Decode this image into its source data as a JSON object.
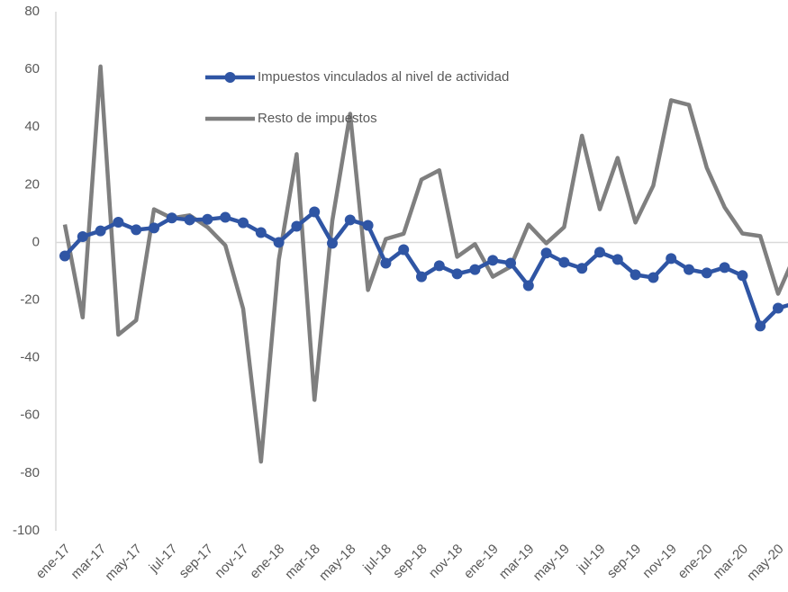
{
  "chart_data": {
    "type": "line",
    "categories": [
      "ene-17",
      null,
      "mar-17",
      null,
      "may-17",
      null,
      "jul-17",
      null,
      "sep-17",
      null,
      "nov-17",
      null,
      "ene-18",
      null,
      "mar-18",
      null,
      "may-18",
      null,
      "jul-18",
      null,
      "sep-18",
      null,
      "nov-18",
      null,
      "ene-19",
      null,
      "mar-19",
      null,
      "may-19",
      null,
      "jul-19",
      null,
      "sep-19",
      null,
      "nov-19",
      null,
      "ene-20",
      null,
      "mar-20",
      null,
      "may-20",
      null
    ],
    "series": [
      {
        "name": "Impuestos vinculados al nivel de actividad",
        "color": "#2f55a4",
        "marker": true,
        "values": [
          -4.7,
          2,
          4,
          7,
          4.4,
          5,
          8.5,
          7.8,
          8,
          8.7,
          6.8,
          3.4,
          0,
          5.6,
          10.6,
          -0.3,
          7.8,
          5.9,
          -7.2,
          -2.5,
          -11.9,
          -8.1,
          -10.9,
          -9.4,
          -6.2,
          -7.2,
          -15,
          -3.7,
          -6.9,
          -9,
          -3.4,
          -5.9,
          -11.2,
          -12.2,
          -5.6,
          -9.4,
          -10.6,
          -8.7,
          -11.5,
          -29,
          -22.8,
          -21
        ]
      },
      {
        "name": "Resto de impuestos",
        "color": "#7f7f7f",
        "marker": false,
        "values": [
          6.2,
          -26,
          61,
          -32,
          -27,
          11.5,
          8.4,
          9.4,
          5.3,
          -1,
          -23,
          -76,
          -6,
          30.6,
          -54.6,
          7.5,
          44.6,
          -16.5,
          1.2,
          3,
          21.8,
          25,
          -5,
          -0.6,
          -11.9,
          -8.4,
          6.2,
          -0.3,
          5.3,
          37,
          11.5,
          29.3,
          6.9,
          19.7,
          49.3,
          47.7,
          25.9,
          12.2,
          3.1,
          2.2,
          -17.8,
          -3.7
        ]
      }
    ],
    "ylim": [
      -100,
      80
    ],
    "yticks": [
      -100,
      -80,
      -60,
      -40,
      -20,
      0,
      20,
      40,
      60,
      80
    ],
    "legend": "top"
  }
}
